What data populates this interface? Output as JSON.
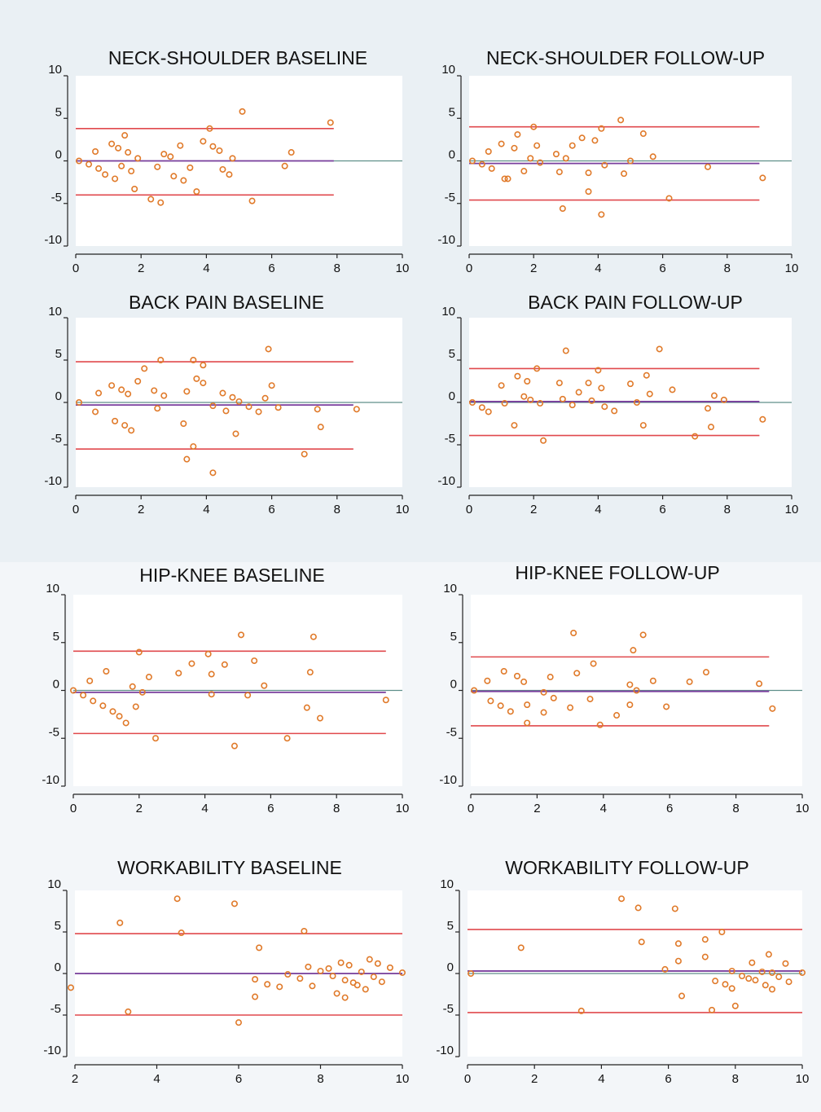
{
  "chart_data": [
    {
      "type": "scatter",
      "title": "NECK-SHOULDER BASELINE",
      "xlim": [
        0,
        10
      ],
      "ylim": [
        -10,
        10
      ],
      "xticks": [
        0,
        2,
        4,
        6,
        8,
        10
      ],
      "yticks": [
        10,
        5,
        0,
        -5,
        -10
      ],
      "ref_lines": {
        "upper": 3.8,
        "mean": 0.0,
        "lower": -4.0,
        "line_end_x": 7.9
      },
      "points": [
        [
          0.1,
          0.0
        ],
        [
          0.4,
          -0.4
        ],
        [
          0.6,
          1.1
        ],
        [
          0.7,
          -0.9
        ],
        [
          0.9,
          -1.6
        ],
        [
          1.1,
          2.0
        ],
        [
          1.2,
          -2.1
        ],
        [
          1.3,
          1.5
        ],
        [
          1.4,
          -0.6
        ],
        [
          1.5,
          3.0
        ],
        [
          1.6,
          1.0
        ],
        [
          1.7,
          -1.2
        ],
        [
          1.8,
          -3.3
        ],
        [
          1.9,
          0.3
        ],
        [
          2.3,
          -4.5
        ],
        [
          2.5,
          -0.7
        ],
        [
          2.6,
          -4.9
        ],
        [
          2.7,
          0.8
        ],
        [
          2.9,
          0.5
        ],
        [
          3.0,
          -1.8
        ],
        [
          3.2,
          1.8
        ],
        [
          3.3,
          -2.3
        ],
        [
          3.5,
          -0.8
        ],
        [
          3.7,
          -3.6
        ],
        [
          3.9,
          2.3
        ],
        [
          4.1,
          3.8
        ],
        [
          4.2,
          1.7
        ],
        [
          4.4,
          1.2
        ],
        [
          4.5,
          -1.0
        ],
        [
          4.7,
          -1.6
        ],
        [
          4.8,
          0.3
        ],
        [
          5.1,
          5.8
        ],
        [
          5.4,
          -4.7
        ],
        [
          6.4,
          -0.6
        ],
        [
          6.6,
          1.0
        ],
        [
          7.8,
          4.5
        ]
      ]
    },
    {
      "type": "scatter",
      "title": "NECK-SHOULDER FOLLOW-UP",
      "xlim": [
        0,
        10
      ],
      "ylim": [
        -10,
        10
      ],
      "xticks": [
        0,
        2,
        4,
        6,
        8,
        10
      ],
      "yticks": [
        10,
        5,
        0,
        -5,
        -10
      ],
      "ref_lines": {
        "upper": 4.0,
        "mean": -0.3,
        "lower": -4.6,
        "line_end_x": 9.0
      },
      "points": [
        [
          0.1,
          0.0
        ],
        [
          0.4,
          -0.4
        ],
        [
          0.6,
          1.1
        ],
        [
          0.7,
          -0.9
        ],
        [
          1.0,
          2.0
        ],
        [
          1.1,
          -2.1
        ],
        [
          1.2,
          -2.1
        ],
        [
          1.4,
          1.5
        ],
        [
          1.5,
          3.1
        ],
        [
          1.7,
          -1.2
        ],
        [
          1.9,
          0.3
        ],
        [
          2.0,
          4.0
        ],
        [
          2.1,
          1.8
        ],
        [
          2.2,
          -0.2
        ],
        [
          2.7,
          0.8
        ],
        [
          2.8,
          -1.3
        ],
        [
          2.9,
          -5.6
        ],
        [
          3.0,
          0.3
        ],
        [
          3.2,
          1.8
        ],
        [
          3.5,
          2.7
        ],
        [
          3.7,
          -1.4
        ],
        [
          3.7,
          -3.6
        ],
        [
          3.9,
          2.4
        ],
        [
          4.1,
          3.8
        ],
        [
          4.1,
          -6.3
        ],
        [
          4.2,
          -0.5
        ],
        [
          4.7,
          4.8
        ],
        [
          4.8,
          -1.5
        ],
        [
          5.0,
          0.0
        ],
        [
          5.4,
          3.2
        ],
        [
          5.7,
          0.5
        ],
        [
          6.2,
          -4.4
        ],
        [
          7.4,
          -0.7
        ],
        [
          9.1,
          -2.0
        ]
      ]
    },
    {
      "type": "scatter",
      "title": "BACK PAIN BASELINE",
      "xlim": [
        0,
        10
      ],
      "ylim": [
        -10,
        10
      ],
      "xticks": [
        0,
        2,
        4,
        6,
        8,
        10
      ],
      "yticks": [
        10,
        5,
        0,
        -5,
        -10
      ],
      "ref_lines": {
        "upper": 4.8,
        "mean": -0.3,
        "lower": -5.5,
        "line_end_x": 8.5
      },
      "points": [
        [
          0.1,
          0.0
        ],
        [
          0.6,
          -1.1
        ],
        [
          0.7,
          1.1
        ],
        [
          1.1,
          2.0
        ],
        [
          1.2,
          -2.2
        ],
        [
          1.4,
          1.5
        ],
        [
          1.5,
          -2.7
        ],
        [
          1.6,
          1.0
        ],
        [
          1.7,
          -3.3
        ],
        [
          1.9,
          2.5
        ],
        [
          2.1,
          4.0
        ],
        [
          2.4,
          1.4
        ],
        [
          2.5,
          -0.7
        ],
        [
          2.6,
          5.0
        ],
        [
          2.7,
          0.8
        ],
        [
          3.3,
          -2.5
        ],
        [
          3.4,
          1.3
        ],
        [
          3.4,
          -6.7
        ],
        [
          3.6,
          -5.2
        ],
        [
          3.6,
          5.0
        ],
        [
          3.7,
          2.8
        ],
        [
          3.9,
          4.4
        ],
        [
          3.9,
          2.3
        ],
        [
          4.2,
          -8.3
        ],
        [
          4.2,
          -0.4
        ],
        [
          4.5,
          1.1
        ],
        [
          4.6,
          -1.0
        ],
        [
          4.8,
          0.6
        ],
        [
          4.9,
          -3.7
        ],
        [
          5.0,
          0.1
        ],
        [
          5.3,
          -0.5
        ],
        [
          5.6,
          -1.1
        ],
        [
          5.8,
          0.5
        ],
        [
          5.9,
          6.3
        ],
        [
          6.0,
          2.0
        ],
        [
          6.2,
          -0.6
        ],
        [
          7.0,
          -6.1
        ],
        [
          7.4,
          -0.8
        ],
        [
          7.5,
          -2.9
        ],
        [
          8.6,
          -0.8
        ]
      ]
    },
    {
      "type": "scatter",
      "title": "BACK PAIN FOLLOW-UP",
      "xlim": [
        0,
        10
      ],
      "ylim": [
        -10,
        10
      ],
      "xticks": [
        0,
        2,
        4,
        6,
        8,
        10
      ],
      "yticks": [
        10,
        5,
        0,
        -5,
        -10
      ],
      "ref_lines": {
        "upper": 4.0,
        "mean": 0.1,
        "lower": -3.9,
        "line_end_x": 9.0
      },
      "points": [
        [
          0.1,
          0.0
        ],
        [
          0.4,
          -0.6
        ],
        [
          0.6,
          -1.1
        ],
        [
          1.0,
          2.0
        ],
        [
          1.1,
          -0.1
        ],
        [
          1.4,
          -2.7
        ],
        [
          1.5,
          3.1
        ],
        [
          1.7,
          0.7
        ],
        [
          1.8,
          2.5
        ],
        [
          1.9,
          0.3
        ],
        [
          2.1,
          4.0
        ],
        [
          2.2,
          -0.1
        ],
        [
          2.3,
          -4.5
        ],
        [
          2.8,
          2.3
        ],
        [
          2.9,
          0.4
        ],
        [
          3.0,
          6.1
        ],
        [
          3.2,
          -0.3
        ],
        [
          3.4,
          1.2
        ],
        [
          3.7,
          2.3
        ],
        [
          3.8,
          0.2
        ],
        [
          4.0,
          3.8
        ],
        [
          4.1,
          1.7
        ],
        [
          4.2,
          -0.5
        ],
        [
          4.5,
          -1.0
        ],
        [
          5.0,
          2.2
        ],
        [
          5.2,
          0.0
        ],
        [
          5.4,
          -2.7
        ],
        [
          5.5,
          3.2
        ],
        [
          5.6,
          1.0
        ],
        [
          5.9,
          6.3
        ],
        [
          6.3,
          1.5
        ],
        [
          7.0,
          -4.0
        ],
        [
          7.4,
          -0.7
        ],
        [
          7.6,
          0.8
        ],
        [
          7.5,
          -2.9
        ],
        [
          7.9,
          0.3
        ],
        [
          9.1,
          -2.0
        ]
      ]
    },
    {
      "type": "scatter",
      "title": "HIP-KNEE BASELINE",
      "xlim": [
        0,
        10
      ],
      "ylim": [
        -10,
        10
      ],
      "xticks": [
        0,
        2,
        4,
        6,
        8,
        10
      ],
      "yticks": [
        10,
        5,
        0,
        -5,
        -10
      ],
      "ref_lines": {
        "upper": 4.1,
        "mean": -0.2,
        "lower": -4.5,
        "line_end_x": 9.5
      },
      "points": [
        [
          0.0,
          0.0
        ],
        [
          0.3,
          -0.5
        ],
        [
          0.5,
          1.0
        ],
        [
          0.6,
          -1.1
        ],
        [
          0.9,
          -1.6
        ],
        [
          1.0,
          2.0
        ],
        [
          1.2,
          -2.2
        ],
        [
          1.4,
          -2.7
        ],
        [
          1.6,
          -3.4
        ],
        [
          1.8,
          0.4
        ],
        [
          1.9,
          -1.7
        ],
        [
          2.0,
          4.0
        ],
        [
          2.1,
          -0.2
        ],
        [
          2.3,
          1.4
        ],
        [
          2.5,
          -5.0
        ],
        [
          3.2,
          1.8
        ],
        [
          3.6,
          2.8
        ],
        [
          4.1,
          3.8
        ],
        [
          4.2,
          1.7
        ],
        [
          4.2,
          -0.4
        ],
        [
          4.6,
          2.7
        ],
        [
          4.9,
          -5.8
        ],
        [
          5.1,
          5.8
        ],
        [
          5.3,
          -0.5
        ],
        [
          5.5,
          3.1
        ],
        [
          5.8,
          0.5
        ],
        [
          6.5,
          -5.0
        ],
        [
          7.1,
          -1.8
        ],
        [
          7.2,
          1.9
        ],
        [
          7.3,
          5.6
        ],
        [
          7.5,
          -2.9
        ],
        [
          9.5,
          -1.0
        ]
      ]
    },
    {
      "type": "scatter",
      "title": "HIP-KNEE FOLLOW-UP",
      "xlim": [
        0,
        10
      ],
      "ylim": [
        -10,
        10
      ],
      "xticks": [
        0,
        2,
        4,
        6,
        8,
        10
      ],
      "yticks": [
        10,
        5,
        0,
        -5,
        -10
      ],
      "ref_lines": {
        "upper": 3.5,
        "mean": -0.1,
        "lower": -3.7,
        "line_end_x": 9.0
      },
      "points": [
        [
          0.1,
          0.0
        ],
        [
          0.5,
          1.0
        ],
        [
          0.6,
          -1.1
        ],
        [
          0.9,
          -1.6
        ],
        [
          1.0,
          2.0
        ],
        [
          1.2,
          -2.2
        ],
        [
          1.4,
          1.5
        ],
        [
          1.6,
          0.9
        ],
        [
          1.7,
          -1.5
        ],
        [
          1.7,
          -3.4
        ],
        [
          2.2,
          -0.2
        ],
        [
          2.2,
          -2.3
        ],
        [
          2.4,
          1.4
        ],
        [
          2.5,
          -0.8
        ],
        [
          3.0,
          -1.8
        ],
        [
          3.1,
          6.0
        ],
        [
          3.2,
          1.8
        ],
        [
          3.6,
          -0.9
        ],
        [
          3.7,
          2.8
        ],
        [
          3.9,
          -3.6
        ],
        [
          4.4,
          -2.6
        ],
        [
          4.8,
          0.6
        ],
        [
          4.8,
          -1.5
        ],
        [
          4.9,
          4.2
        ],
        [
          5.0,
          0.0
        ],
        [
          5.2,
          5.8
        ],
        [
          5.5,
          1.0
        ],
        [
          5.9,
          -1.7
        ],
        [
          6.6,
          0.9
        ],
        [
          7.1,
          1.9
        ],
        [
          8.7,
          0.7
        ],
        [
          9.1,
          -1.9
        ]
      ]
    },
    {
      "type": "scatter",
      "title": "WORKABILITY BASELINE",
      "xlim": [
        2,
        10
      ],
      "ylim": [
        -10,
        10
      ],
      "xticks": [
        2,
        4,
        6,
        8,
        10
      ],
      "yticks": [
        10,
        5,
        0,
        -5,
        -10
      ],
      "ref_lines": {
        "upper": 4.8,
        "mean": 0.0,
        "lower": -5.0,
        "line_end_x": 10.0
      },
      "points": [
        [
          1.9,
          -1.7
        ],
        [
          3.1,
          6.1
        ],
        [
          3.3,
          -4.6
        ],
        [
          4.5,
          9.0
        ],
        [
          4.6,
          4.9
        ],
        [
          5.9,
          8.4
        ],
        [
          6.0,
          -5.9
        ],
        [
          6.5,
          3.1
        ],
        [
          6.4,
          -0.7
        ],
        [
          6.4,
          -2.8
        ],
        [
          6.7,
          -1.3
        ],
        [
          7.0,
          -1.6
        ],
        [
          7.2,
          -0.1
        ],
        [
          7.5,
          -0.6
        ],
        [
          7.6,
          5.1
        ],
        [
          7.7,
          0.8
        ],
        [
          7.8,
          -1.5
        ],
        [
          8.0,
          0.3
        ],
        [
          8.2,
          0.6
        ],
        [
          8.3,
          -0.3
        ],
        [
          8.4,
          -2.4
        ],
        [
          8.5,
          1.3
        ],
        [
          8.6,
          -0.8
        ],
        [
          8.6,
          -2.9
        ],
        [
          8.7,
          1.0
        ],
        [
          8.8,
          -1.1
        ],
        [
          8.9,
          -1.4
        ],
        [
          9.0,
          0.2
        ],
        [
          9.1,
          -1.9
        ],
        [
          9.2,
          1.7
        ],
        [
          9.3,
          -0.4
        ],
        [
          9.4,
          1.2
        ],
        [
          9.5,
          -1.0
        ],
        [
          9.7,
          0.7
        ],
        [
          10.0,
          0.1
        ]
      ]
    },
    {
      "type": "scatter",
      "title": "WORKABILITY FOLLOW-UP",
      "xlim": [
        0,
        10
      ],
      "ylim": [
        -10,
        10
      ],
      "xticks": [
        0,
        2,
        4,
        6,
        8,
        10
      ],
      "yticks": [
        10,
        5,
        0,
        -5,
        -10
      ],
      "ref_lines": {
        "upper": 5.3,
        "mean": 0.3,
        "lower": -4.7,
        "line_end_x": 10.0
      },
      "points": [
        [
          0.1,
          0.0
        ],
        [
          1.6,
          3.1
        ],
        [
          3.4,
          -4.5
        ],
        [
          4.6,
          9.0
        ],
        [
          5.1,
          7.9
        ],
        [
          5.2,
          3.8
        ],
        [
          5.9,
          0.5
        ],
        [
          6.2,
          7.8
        ],
        [
          6.3,
          3.6
        ],
        [
          6.3,
          1.5
        ],
        [
          6.4,
          -2.7
        ],
        [
          7.1,
          4.1
        ],
        [
          7.1,
          2.0
        ],
        [
          7.3,
          -4.4
        ],
        [
          7.4,
          -0.9
        ],
        [
          7.6,
          5.0
        ],
        [
          7.7,
          -1.3
        ],
        [
          7.9,
          0.3
        ],
        [
          7.9,
          -1.8
        ],
        [
          8.0,
          -3.9
        ],
        [
          8.2,
          -0.3
        ],
        [
          8.4,
          -0.6
        ],
        [
          8.5,
          1.3
        ],
        [
          8.6,
          -0.8
        ],
        [
          8.8,
          0.2
        ],
        [
          8.9,
          -1.4
        ],
        [
          9.0,
          2.3
        ],
        [
          9.1,
          -1.9
        ],
        [
          9.1,
          0.1
        ],
        [
          9.3,
          -0.4
        ],
        [
          9.5,
          1.2
        ],
        [
          9.6,
          -1.0
        ],
        [
          10.0,
          0.1
        ]
      ]
    }
  ]
}
